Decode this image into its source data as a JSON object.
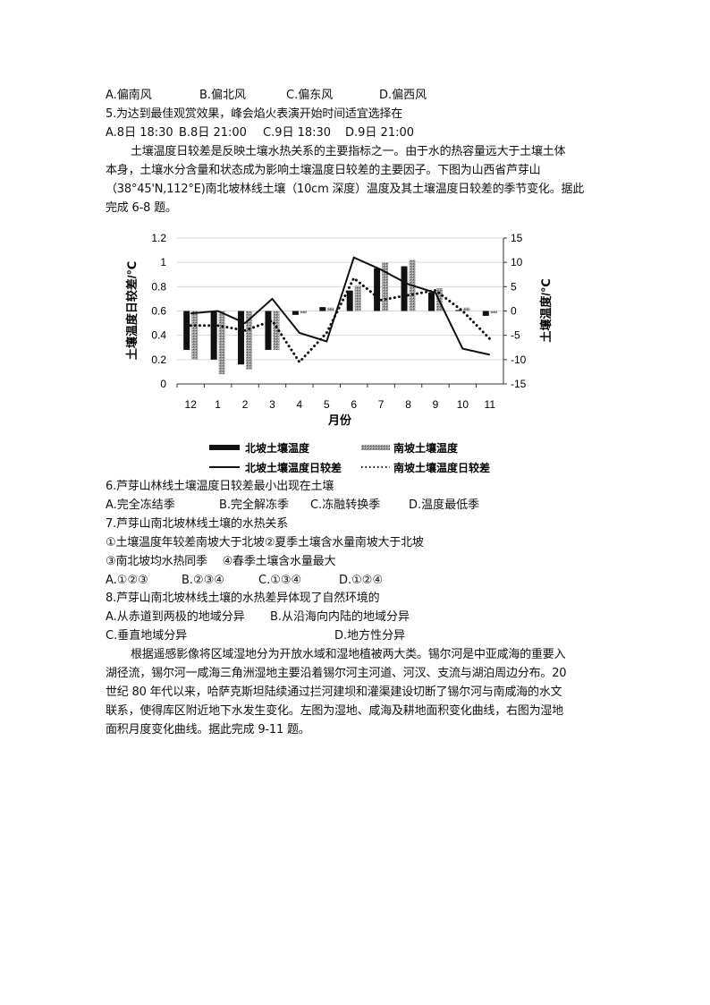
{
  "q4_options": [
    "A.偏南风",
    "B.偏北风",
    "C.偏东风",
    "D.偏西风"
  ],
  "q5": {
    "stem": "5.为达到最佳观赏效果，峰会焰火表演开始时间适宜选择在",
    "options": [
      "A.8日 18:30",
      "B.8日 21:00",
      "C.9日 18:30",
      "D.9日 21:00"
    ]
  },
  "passage1": [
    "土壤温度日较差是反映土壤水热关系的主要指标之一。由于水的热容量远大于土壤土体",
    "本身，土壤水分含量和状态成为影响土壤温度日较差的主要因子。下图为山西省芦芽山",
    "（38°45'N,112°E)南北坡林线土壤（10cm 深度）温度及其土壤温度日较差的季节变化。据此",
    "完成 6-8 题。"
  ],
  "chart_data": {
    "type": "bar+line",
    "categories": [
      "12",
      "1",
      "2",
      "3",
      "4",
      "5",
      "6",
      "7",
      "8",
      "9",
      "10",
      "11"
    ],
    "xlabel": "月份",
    "ylabel_left": "土壤温度日较差/℃",
    "ylabel_right": "土壤温度/℃",
    "ylim_left": [
      0,
      1.2
    ],
    "yticks_left": [
      "0",
      "0.2",
      "0.4",
      "0.6",
      "0.8",
      "1",
      "1.2"
    ],
    "ylim_right": [
      -15,
      15
    ],
    "yticks_right": [
      "-15",
      "-10",
      "-5",
      "0",
      "5",
      "10",
      "15"
    ],
    "grid": true,
    "legend_placement": "bottom",
    "series": [
      {
        "name": "北坡土壤温度",
        "kind": "bar",
        "axis": "right",
        "color": "#111111",
        "values": [
          -8,
          -10,
          -11,
          -8,
          -0.8,
          0.8,
          4.2,
          8.8,
          9.2,
          3.8,
          0.2,
          -1
        ]
      },
      {
        "name": "南坡土壤温度",
        "kind": "bar",
        "axis": "right",
        "color": "#8a8a8a",
        "values": [
          -10,
          -13,
          -12,
          -8,
          -0.5,
          0.7,
          5.2,
          10,
          10.5,
          4.7,
          0.7,
          -0.5
        ]
      },
      {
        "name": "北坡土壤温度日较差",
        "kind": "line",
        "axis": "left",
        "color": "#111111",
        "values": [
          0.58,
          0.6,
          0.5,
          0.7,
          0.42,
          0.35,
          1.04,
          0.94,
          0.82,
          0.75,
          0.29,
          0.24
        ]
      },
      {
        "name": "南坡土壤温度日较差",
        "kind": "dotted-line",
        "axis": "left",
        "color": "#111111",
        "values": [
          0.48,
          0.48,
          0.44,
          0.52,
          0.18,
          0.42,
          0.87,
          0.69,
          0.73,
          0.77,
          0.6,
          0.37
        ]
      }
    ]
  },
  "q6": {
    "stem": "6.芦芽山林线土壤温度日较差最小出现在土壤",
    "options": [
      "A.完全冻结季",
      "B.完全解冻季",
      "C.冻融转换季",
      "D.温度最低季"
    ]
  },
  "q7": {
    "stem": "7.芦芽山南北坡林线土壤的水热关系",
    "s1": "①土壤温度年较差南坡大于北坡②夏季土壤含水量南坡大于北坡",
    "s2": "③南北坡均水热同季　 ④春季土壤含水量最大",
    "options": [
      "A.①②③",
      "B.②③④",
      "C.①③④",
      "D.①②④"
    ]
  },
  "q8": {
    "stem": "8.芦芽山南北坡林线土壤的水热差异体现了自然环境的",
    "options": [
      "A.从赤道到两极的地域分异",
      "B.从沿海向内陆的地域分异",
      "C.垂直地域分异",
      "D.地方性分异"
    ]
  },
  "passage2": [
    "根据遥感影像将区域湿地分为开放水域和湿地植被两大类。锡尔河是中亚咸海的重要入",
    "湖径流，锡尔河一咸海三角洲湿地主要沿着锡尔河主河道、河汊、支流与湖泊周边分布。20",
    "世纪 80 年代以来，哈萨克斯坦陆续通过拦河建坝和灌渠建设切断了锡尔河与南咸海的水文",
    "联系，使得库区附近地下水发生变化。左图为湿地、咸海及耕地面积变化曲线，右图为湿地",
    "面积月度变化曲线。据此完成 9-11 题。"
  ]
}
